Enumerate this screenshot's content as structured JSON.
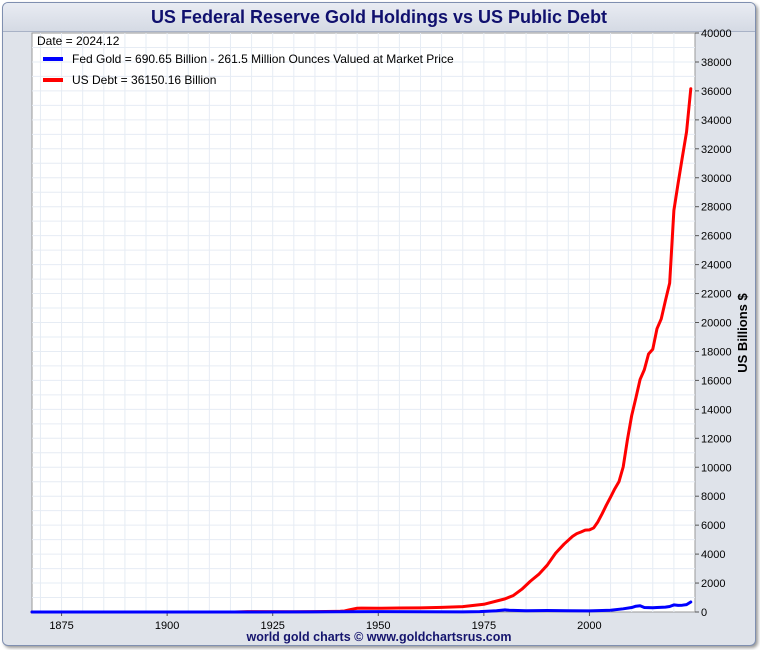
{
  "chart_data": {
    "type": "line",
    "title": "US Federal Reserve Gold Holdings vs US Public Debt",
    "date_label": "Date = 2024.12",
    "ylabel": "US Billions $",
    "footer": "world gold charts © www.goldchartsrus.com",
    "xlim": [
      1868,
      2025
    ],
    "ylim": [
      0,
      40000
    ],
    "grid": true,
    "legend_position": "top-left",
    "x_ticks": [
      "1875",
      "1900",
      "1925",
      "1950",
      "1975",
      "2000"
    ],
    "y_ticks": [
      "0",
      "2000",
      "4000",
      "6000",
      "8000",
      "10000",
      "12000",
      "14000",
      "16000",
      "18000",
      "20000",
      "22000",
      "24000",
      "26000",
      "28000",
      "30000",
      "32000",
      "34000",
      "36000",
      "38000",
      "40000"
    ],
    "series": [
      {
        "name": "Fed Gold = 690.65 Billion - 261.5 Million Ounces Valued at Market Price",
        "color": "#0000ff",
        "points": [
          [
            1868,
            0
          ],
          [
            1900,
            1
          ],
          [
            1920,
            3
          ],
          [
            1934,
            8
          ],
          [
            1940,
            20
          ],
          [
            1950,
            23
          ],
          [
            1960,
            18
          ],
          [
            1970,
            11
          ],
          [
            1974,
            30
          ],
          [
            1978,
            90
          ],
          [
            1980,
            150
          ],
          [
            1981,
            120
          ],
          [
            1985,
            85
          ],
          [
            1990,
            100
          ],
          [
            1995,
            90
          ],
          [
            2000,
            75
          ],
          [
            2005,
            120
          ],
          [
            2008,
            220
          ],
          [
            2010,
            310
          ],
          [
            2011,
            400
          ],
          [
            2012,
            430
          ],
          [
            2013,
            310
          ],
          [
            2015,
            290
          ],
          [
            2016,
            310
          ],
          [
            2018,
            340
          ],
          [
            2019,
            380
          ],
          [
            2020,
            490
          ],
          [
            2021,
            460
          ],
          [
            2022,
            470
          ],
          [
            2023,
            510
          ],
          [
            2024,
            690.65
          ]
        ]
      },
      {
        "name": "US Debt = 36150.16 Billion",
        "color": "#ff0000",
        "points": [
          [
            1868,
            2.6
          ],
          [
            1880,
            2.1
          ],
          [
            1890,
            1.1
          ],
          [
            1900,
            1.3
          ],
          [
            1910,
            1.1
          ],
          [
            1916,
            1.2
          ],
          [
            1919,
            25
          ],
          [
            1930,
            16
          ],
          [
            1935,
            29
          ],
          [
            1940,
            43
          ],
          [
            1941,
            49
          ],
          [
            1942,
            72
          ],
          [
            1943,
            137
          ],
          [
            1944,
            201
          ],
          [
            1945,
            259
          ],
          [
            1946,
            269
          ],
          [
            1950,
            257
          ],
          [
            1955,
            274
          ],
          [
            1960,
            286
          ],
          [
            1965,
            317
          ],
          [
            1970,
            371
          ],
          [
            1975,
            533
          ],
          [
            1980,
            908
          ],
          [
            1982,
            1142
          ],
          [
            1984,
            1573
          ],
          [
            1986,
            2125
          ],
          [
            1988,
            2602
          ],
          [
            1990,
            3233
          ],
          [
            1992,
            4065
          ],
          [
            1994,
            4693
          ],
          [
            1996,
            5225
          ],
          [
            1997,
            5413
          ],
          [
            1998,
            5526
          ],
          [
            1999,
            5656
          ],
          [
            2000,
            5674
          ],
          [
            2001,
            5807
          ],
          [
            2002,
            6228
          ],
          [
            2003,
            6783
          ],
          [
            2004,
            7379
          ],
          [
            2005,
            7933
          ],
          [
            2006,
            8507
          ],
          [
            2007,
            9008
          ],
          [
            2008,
            10025
          ],
          [
            2009,
            11910
          ],
          [
            2010,
            13562
          ],
          [
            2011,
            14790
          ],
          [
            2012,
            16066
          ],
          [
            2013,
            16738
          ],
          [
            2014,
            17824
          ],
          [
            2015,
            18151
          ],
          [
            2016,
            19573
          ],
          [
            2017,
            20245
          ],
          [
            2018,
            21516
          ],
          [
            2019,
            22719
          ],
          [
            2020,
            27748
          ],
          [
            2021,
            29617
          ],
          [
            2022,
            31420
          ],
          [
            2023,
            33167
          ],
          [
            2024,
            36150.16
          ]
        ]
      }
    ]
  }
}
